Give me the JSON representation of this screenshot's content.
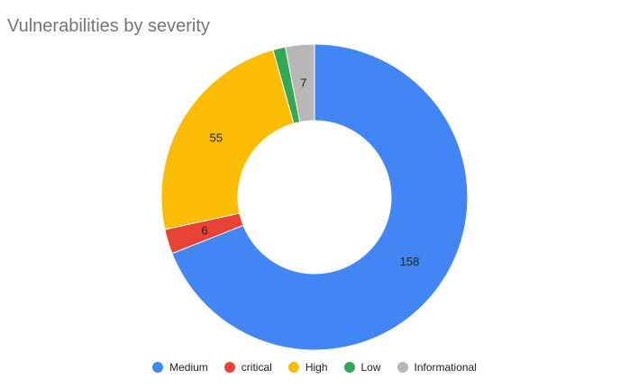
{
  "chart_data": {
    "type": "pie",
    "donut": true,
    "title": "Vulnerabilities by severity",
    "legend_position": "bottom",
    "series": [
      {
        "name": "Medium",
        "value": 158,
        "color": "#4285f4",
        "label": "158"
      },
      {
        "name": "critical",
        "value": 6,
        "color": "#ea4335",
        "label": "6"
      },
      {
        "name": "High",
        "value": 55,
        "color": "#fbbc04",
        "label": "55"
      },
      {
        "name": "Low",
        "value": 3,
        "color": "#34a853",
        "label": ""
      },
      {
        "name": "Informational",
        "value": 7,
        "color": "#b7b7b7",
        "label": "7"
      }
    ]
  }
}
